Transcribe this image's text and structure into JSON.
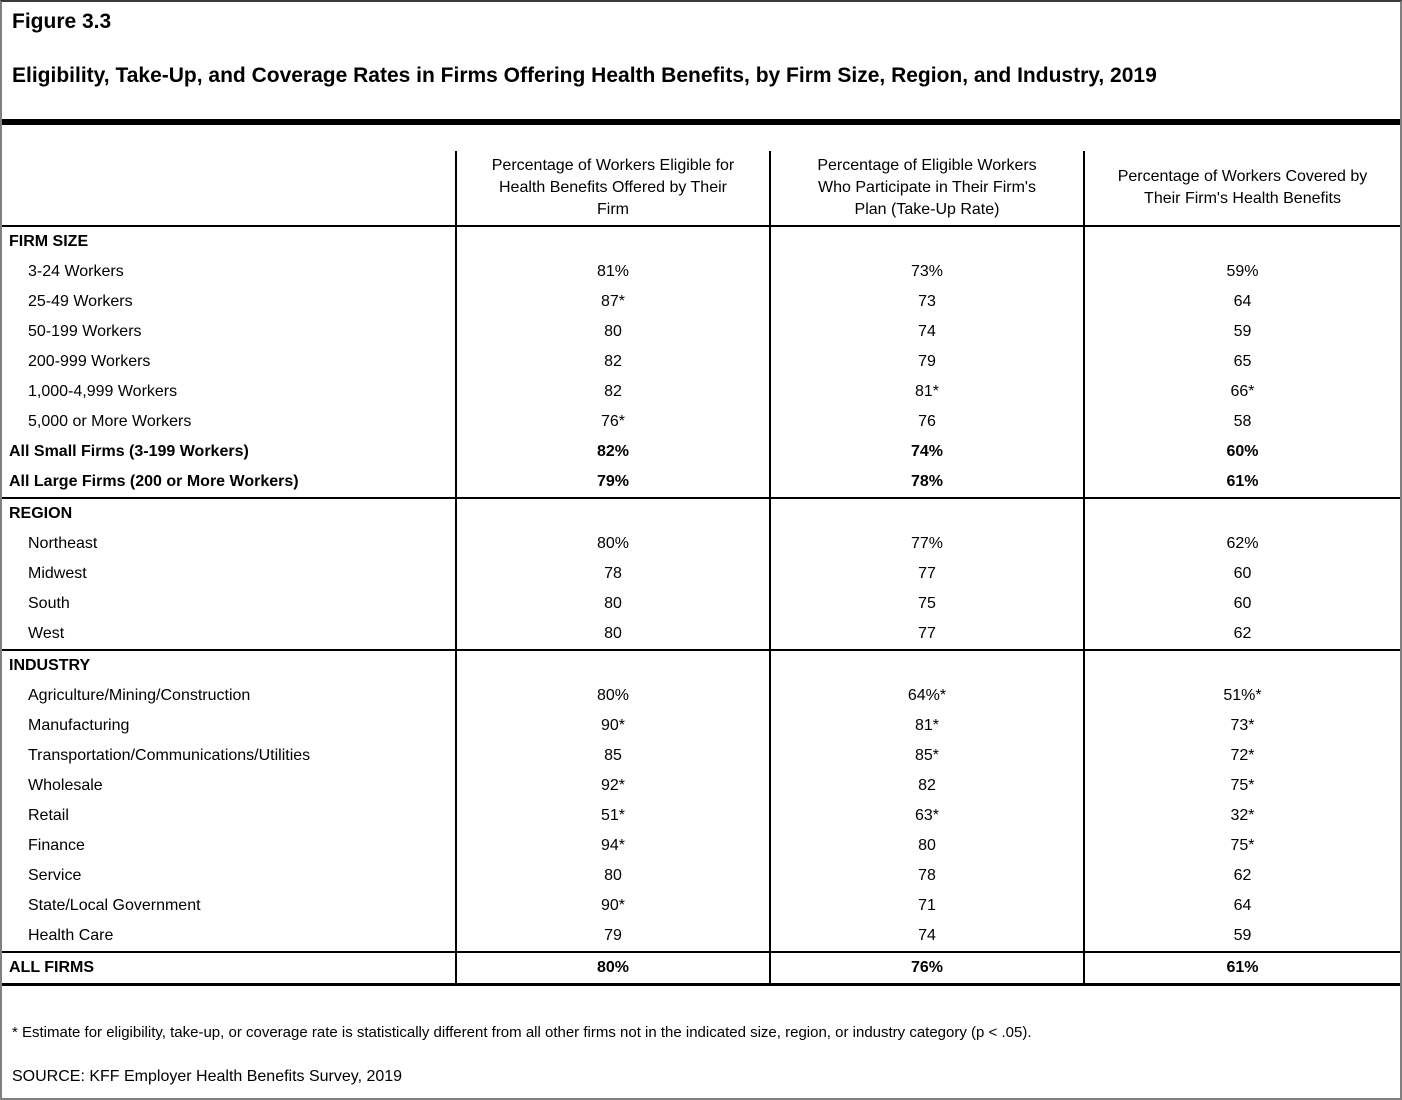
{
  "figure_label": "Figure 3.3",
  "title": "Eligibility, Take-Up, and Coverage Rates in Firms Offering Health Benefits, by Firm Size, Region, and Industry, 2019",
  "table": {
    "columns": [
      "Percentage of Workers Eligible for\nHealth Benefits Offered by Their\nFirm",
      "Percentage of Eligible Workers\nWho Participate in Their Firm's\nPlan (Take-Up Rate)",
      "Percentage of Workers Covered by\nTheir Firm's Health Benefits"
    ],
    "rows": [
      {
        "type": "section",
        "label": "FIRM SIZE",
        "values": [
          "",
          "",
          ""
        ]
      },
      {
        "type": "data",
        "label": "3-24 Workers",
        "values": [
          "81%",
          "73%",
          "59%"
        ]
      },
      {
        "type": "data",
        "label": "25-49 Workers",
        "values": [
          "87*",
          "73",
          "64"
        ]
      },
      {
        "type": "data",
        "label": "50-199 Workers",
        "values": [
          "80",
          "74",
          "59"
        ]
      },
      {
        "type": "data",
        "label": "200-999 Workers",
        "values": [
          "82",
          "79",
          "65"
        ]
      },
      {
        "type": "data",
        "label": "1,000-4,999 Workers",
        "values": [
          "82",
          "81*",
          "66*"
        ]
      },
      {
        "type": "data",
        "label": "5,000 or More Workers",
        "values": [
          "76*",
          "76",
          "58"
        ]
      },
      {
        "type": "bold",
        "label": "All Small Firms (3-199 Workers)",
        "values": [
          "82%",
          "74%",
          "60%"
        ]
      },
      {
        "type": "bold",
        "label": "All Large Firms (200 or More Workers)",
        "values": [
          "79%",
          "78%",
          "61%"
        ]
      },
      {
        "type": "section",
        "label": "REGION",
        "values": [
          "",
          "",
          ""
        ]
      },
      {
        "type": "data",
        "label": "Northeast",
        "values": [
          "80%",
          "77%",
          "62%"
        ]
      },
      {
        "type": "data",
        "label": "Midwest",
        "values": [
          "78",
          "77",
          "60"
        ]
      },
      {
        "type": "data",
        "label": "South",
        "values": [
          "80",
          "75",
          "60"
        ]
      },
      {
        "type": "data",
        "label": "West",
        "values": [
          "80",
          "77",
          "62"
        ]
      },
      {
        "type": "section",
        "label": "INDUSTRY",
        "values": [
          "",
          "",
          ""
        ]
      },
      {
        "type": "data",
        "label": "Agriculture/Mining/Construction",
        "values": [
          "80%",
          "64%*",
          "51%*"
        ]
      },
      {
        "type": "data",
        "label": "Manufacturing",
        "values": [
          "90*",
          "81*",
          "73*"
        ]
      },
      {
        "type": "data",
        "label": "Transportation/Communications/Utilities",
        "values": [
          "85",
          "85*",
          "72*"
        ]
      },
      {
        "type": "data",
        "label": "Wholesale",
        "values": [
          "92*",
          "82",
          "75*"
        ]
      },
      {
        "type": "data",
        "label": "Retail",
        "values": [
          "51*",
          "63*",
          "32*"
        ]
      },
      {
        "type": "data",
        "label": "Finance",
        "values": [
          "94*",
          "80",
          "75*"
        ]
      },
      {
        "type": "data",
        "label": "Service",
        "values": [
          "80",
          "78",
          "62"
        ]
      },
      {
        "type": "data",
        "label": "State/Local Government",
        "values": [
          "90*",
          "71",
          "64"
        ]
      },
      {
        "type": "data",
        "label": "Health Care",
        "values": [
          "79",
          "74",
          "59"
        ]
      },
      {
        "type": "total",
        "label": "ALL FIRMS",
        "values": [
          "80%",
          "76%",
          "61%"
        ]
      }
    ]
  },
  "footnote": "* Estimate for eligibility, take-up, or coverage rate is statistically different from all other firms not in the indicated size, region, or industry category (p < .05).",
  "source": "SOURCE: KFF Employer Health Benefits Survey, 2019"
}
